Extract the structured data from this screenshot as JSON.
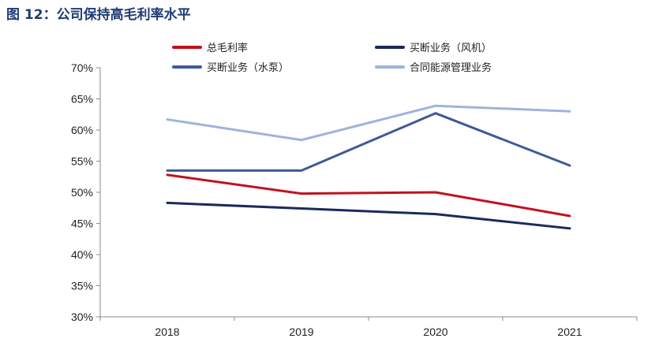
{
  "figure_title": "图 12：公司保持高毛利率水平",
  "chart_data": {
    "type": "line",
    "title": "",
    "xlabel": "",
    "ylabel": "",
    "categories": [
      "2018",
      "2019",
      "2020",
      "2021"
    ],
    "ylim": [
      30,
      70
    ],
    "y_ticks": [
      "30%",
      "35%",
      "40%",
      "45%",
      "50%",
      "55%",
      "60%",
      "65%",
      "70%"
    ],
    "grid": false,
    "legend_position": "top",
    "series": [
      {
        "name": "总毛利率",
        "color": "#c0121f",
        "values": [
          52.8,
          49.8,
          50.0,
          46.2
        ]
      },
      {
        "name": "买断业务（风机）",
        "color": "#1a2a5c",
        "values": [
          48.3,
          47.4,
          46.5,
          44.2
        ]
      },
      {
        "name": "买断业务（水泵）",
        "color": "#3d5a99",
        "values": [
          53.5,
          53.5,
          62.7,
          54.3
        ]
      },
      {
        "name": "合同能源管理业务",
        "color": "#9fb3dd",
        "values": [
          61.7,
          58.4,
          63.9,
          63.0
        ]
      }
    ]
  }
}
